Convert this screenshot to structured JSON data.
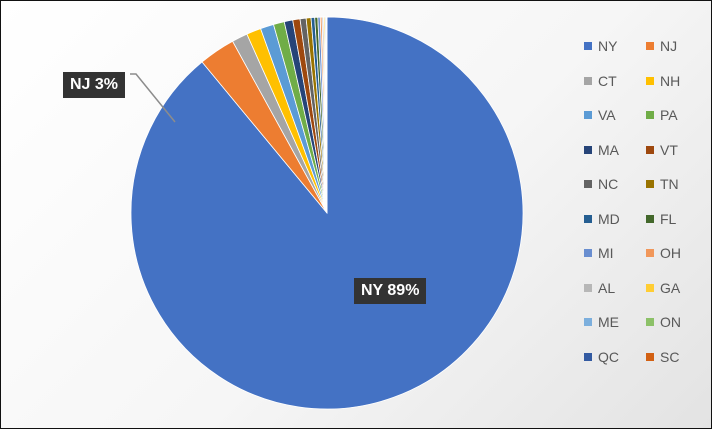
{
  "colors": {
    "label_bg": "#333333",
    "label_text": "#ffffff",
    "leader_line": "#8c8c8c",
    "legend_text": "#595959",
    "slice_border": "#ffffff"
  },
  "chart_data": {
    "type": "pie",
    "title": "",
    "legend_position": "right",
    "slices": [
      {
        "label": "NY",
        "value": 89.0,
        "color": "#4472C4"
      },
      {
        "label": "NJ",
        "value": 3.0,
        "color": "#ED7D31"
      },
      {
        "label": "CT",
        "value": 1.3,
        "color": "#A5A5A5"
      },
      {
        "label": "NH",
        "value": 1.2,
        "color": "#FFC000"
      },
      {
        "label": "VA",
        "value": 1.1,
        "color": "#5B9BD5"
      },
      {
        "label": "PA",
        "value": 0.9,
        "color": "#70AD47"
      },
      {
        "label": "MA",
        "value": 0.7,
        "color": "#264478"
      },
      {
        "label": "VT",
        "value": 0.6,
        "color": "#9E480E"
      },
      {
        "label": "NC",
        "value": 0.5,
        "color": "#636363"
      },
      {
        "label": "TN",
        "value": 0.4,
        "color": "#997300"
      },
      {
        "label": "MD",
        "value": 0.3,
        "color": "#255E91"
      },
      {
        "label": "FL",
        "value": 0.25,
        "color": "#43682B"
      },
      {
        "label": "MI",
        "value": 0.2,
        "color": "#698ED0"
      },
      {
        "label": "OH",
        "value": 0.15,
        "color": "#F1975A"
      },
      {
        "label": "AL",
        "value": 0.12,
        "color": "#B7B7B7"
      },
      {
        "label": "GA",
        "value": 0.1,
        "color": "#FFCD33"
      },
      {
        "label": "ME",
        "value": 0.08,
        "color": "#7CAFDD"
      },
      {
        "label": "ON",
        "value": 0.05,
        "color": "#8CC168"
      },
      {
        "label": "QC",
        "value": 0.03,
        "color": "#335AA1"
      },
      {
        "label": "SC",
        "value": 0.02,
        "color": "#D26012"
      }
    ],
    "data_labels": [
      {
        "label": "NY",
        "percent": "89%"
      },
      {
        "label": "NJ",
        "percent": "3%"
      }
    ]
  }
}
